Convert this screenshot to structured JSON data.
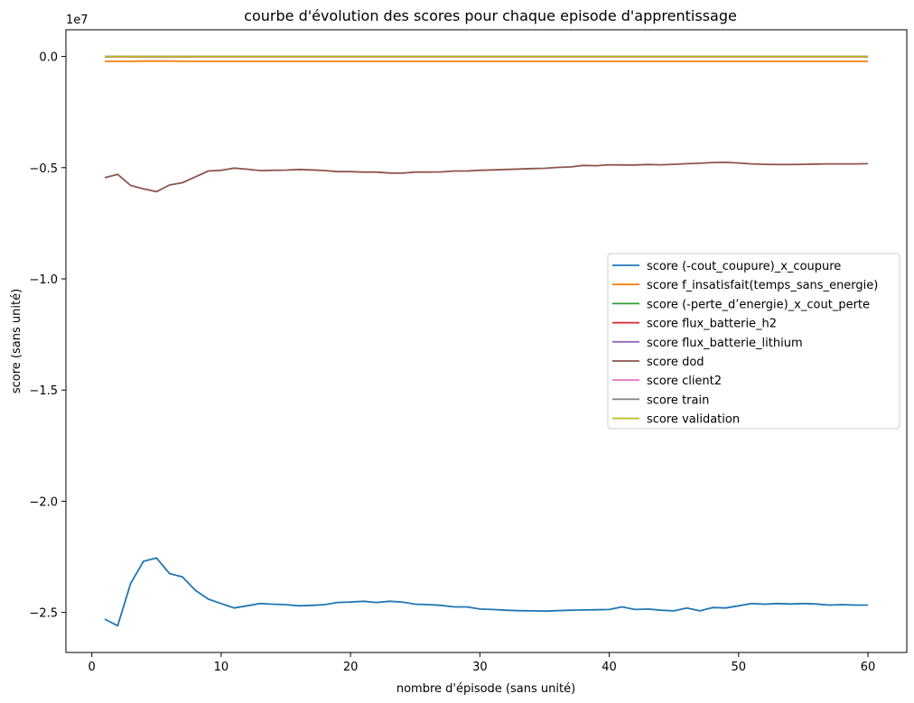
{
  "chart_data": {
    "type": "line",
    "title": "courbe d'évolution des scores pour chaque episode d'apprentissage",
    "xlabel": "nombre d'épisode (sans unité)",
    "ylabel": "score (sans unité)",
    "y_multiplier": "1e7",
    "xlim": [
      -2,
      63
    ],
    "ylim": [
      -2.68,
      0.12
    ],
    "x_ticks": [
      0,
      10,
      20,
      30,
      40,
      50,
      60
    ],
    "x_tick_labels": [
      "0",
      "10",
      "20",
      "30",
      "40",
      "50",
      "60"
    ],
    "y_ticks": [
      0.0,
      -0.5,
      -1.0,
      -1.5,
      -2.0,
      -2.5
    ],
    "y_tick_labels": [
      "0.0",
      "−0.5",
      "−1.0",
      "−1.5",
      "−2.0",
      "−2.5"
    ],
    "grid": false,
    "legend_position": "center-right",
    "x": [
      1,
      2,
      3,
      4,
      5,
      6,
      7,
      8,
      9,
      10,
      11,
      12,
      13,
      14,
      15,
      16,
      17,
      18,
      19,
      20,
      21,
      22,
      23,
      24,
      25,
      26,
      27,
      28,
      29,
      30,
      31,
      32,
      33,
      34,
      35,
      36,
      37,
      38,
      39,
      40,
      41,
      42,
      43,
      44,
      45,
      46,
      47,
      48,
      49,
      50,
      51,
      52,
      53,
      54,
      55,
      56,
      57,
      58,
      59,
      60
    ],
    "series": [
      {
        "name": "score (-cout_coupure)_x_coupure",
        "color": "#1f77b4",
        "values": [
          -2.53,
          -2.56,
          -2.37,
          -2.27,
          -2.255,
          -2.325,
          -2.34,
          -2.4,
          -2.44,
          -2.46,
          -2.48,
          -2.47,
          -2.46,
          -2.463,
          -2.465,
          -2.47,
          -2.468,
          -2.465,
          -2.455,
          -2.453,
          -2.45,
          -2.455,
          -2.45,
          -2.453,
          -2.463,
          -2.465,
          -2.468,
          -2.475,
          -2.475,
          -2.485,
          -2.487,
          -2.49,
          -2.492,
          -2.493,
          -2.494,
          -2.492,
          -2.49,
          -2.489,
          -2.488,
          -2.487,
          -2.475,
          -2.487,
          -2.485,
          -2.49,
          -2.493,
          -2.48,
          -2.493,
          -2.478,
          -2.48,
          -2.47,
          -2.46,
          -2.463,
          -2.46,
          -2.462,
          -2.46,
          -2.462,
          -2.467,
          -2.465,
          -2.467,
          -2.467
        ]
      },
      {
        "name": "score f_insatisfait(temps_sans_energie)",
        "color": "#ff7f0e",
        "values": [
          -0.022,
          -0.022,
          -0.022,
          -0.021,
          -0.021,
          -0.021,
          -0.022,
          -0.022,
          -0.022,
          -0.022,
          -0.022,
          -0.022,
          -0.022,
          -0.022,
          -0.022,
          -0.022,
          -0.022,
          -0.022,
          -0.022,
          -0.022,
          -0.022,
          -0.022,
          -0.022,
          -0.022,
          -0.022,
          -0.022,
          -0.022,
          -0.022,
          -0.022,
          -0.022,
          -0.022,
          -0.022,
          -0.022,
          -0.022,
          -0.022,
          -0.022,
          -0.022,
          -0.022,
          -0.022,
          -0.022,
          -0.022,
          -0.022,
          -0.022,
          -0.022,
          -0.022,
          -0.022,
          -0.022,
          -0.022,
          -0.022,
          -0.022,
          -0.022,
          -0.022,
          -0.022,
          -0.022,
          -0.022,
          -0.022,
          -0.022,
          -0.022,
          -0.022,
          -0.022
        ]
      },
      {
        "name": "score (-perte_d’energie)_x_cout_perte",
        "color": "#2ca02c",
        "values": [
          -0.001,
          -0.001,
          -0.001,
          -0.001,
          -0.001,
          -0.001,
          -0.001,
          -0.001,
          -0.001,
          -0.001,
          -0.001,
          -0.001,
          -0.001,
          -0.001,
          -0.001,
          -0.001,
          -0.001,
          -0.001,
          -0.001,
          -0.001,
          -0.001,
          -0.001,
          -0.001,
          -0.001,
          -0.001,
          -0.001,
          -0.001,
          -0.001,
          -0.001,
          -0.001,
          -0.001,
          -0.001,
          -0.001,
          -0.001,
          -0.001,
          -0.001,
          -0.001,
          -0.001,
          -0.001,
          -0.001,
          -0.001,
          -0.001,
          -0.001,
          -0.001,
          -0.001,
          -0.001,
          -0.001,
          -0.001,
          -0.001,
          -0.001,
          -0.001,
          -0.001,
          -0.001,
          -0.001,
          -0.001,
          -0.001,
          -0.001,
          -0.001,
          -0.001,
          -0.001
        ]
      },
      {
        "name": "score flux_batterie_h2",
        "color": "#d62728",
        "values": [
          -0.001,
          -0.001,
          -0.001,
          -0.001,
          -0.001,
          -0.001,
          -0.001,
          -0.001,
          -0.001,
          -0.001,
          -0.001,
          -0.001,
          -0.001,
          -0.001,
          -0.001,
          -0.001,
          -0.001,
          -0.001,
          -0.001,
          -0.001,
          -0.001,
          -0.001,
          -0.001,
          -0.001,
          -0.001,
          -0.001,
          -0.001,
          -0.001,
          -0.001,
          -0.001,
          -0.001,
          -0.001,
          -0.001,
          -0.001,
          -0.001,
          -0.001,
          -0.001,
          -0.001,
          -0.001,
          -0.001,
          -0.001,
          -0.001,
          -0.001,
          -0.001,
          -0.001,
          -0.001,
          -0.001,
          -0.001,
          -0.001,
          -0.001,
          -0.001,
          -0.001,
          -0.001,
          -0.001,
          -0.001,
          -0.001,
          -0.001,
          -0.001,
          -0.001,
          -0.001
        ]
      },
      {
        "name": "score flux_batterie_lithium",
        "color": "#9467bd",
        "values": [
          -0.001,
          -0.001,
          -0.001,
          -0.001,
          -0.001,
          -0.001,
          -0.001,
          -0.001,
          -0.001,
          -0.001,
          -0.001,
          -0.001,
          -0.001,
          -0.001,
          -0.001,
          -0.001,
          -0.001,
          -0.001,
          -0.001,
          -0.001,
          -0.001,
          -0.001,
          -0.001,
          -0.001,
          -0.001,
          -0.001,
          -0.001,
          -0.001,
          -0.001,
          -0.001,
          -0.001,
          -0.001,
          -0.001,
          -0.001,
          -0.001,
          -0.001,
          -0.001,
          -0.001,
          -0.001,
          -0.001,
          -0.001,
          -0.001,
          -0.001,
          -0.001,
          -0.001,
          -0.001,
          -0.001,
          -0.001,
          -0.001,
          -0.001,
          -0.001,
          -0.001,
          -0.001,
          -0.001,
          -0.001,
          -0.001,
          -0.001,
          -0.001,
          -0.001,
          -0.001
        ]
      },
      {
        "name": "score dod",
        "color": "#8c564b",
        "values": [
          -0.545,
          -0.53,
          -0.58,
          -0.595,
          -0.608,
          -0.578,
          -0.568,
          -0.542,
          -0.515,
          -0.512,
          -0.502,
          -0.507,
          -0.513,
          -0.512,
          -0.511,
          -0.508,
          -0.51,
          -0.513,
          -0.518,
          -0.518,
          -0.52,
          -0.52,
          -0.524,
          -0.525,
          -0.52,
          -0.52,
          -0.519,
          -0.515,
          -0.515,
          -0.512,
          -0.51,
          -0.508,
          -0.506,
          -0.504,
          -0.503,
          -0.499,
          -0.497,
          -0.49,
          -0.491,
          -0.487,
          -0.488,
          -0.488,
          -0.486,
          -0.487,
          -0.485,
          -0.482,
          -0.48,
          -0.477,
          -0.476,
          -0.479,
          -0.483,
          -0.485,
          -0.486,
          -0.486,
          -0.485,
          -0.484,
          -0.483,
          -0.483,
          -0.483,
          -0.482
        ]
      },
      {
        "name": "score client2",
        "color": "#e377c2",
        "values": [
          0.0,
          0.0,
          0.0,
          0.0,
          0.0,
          0.0,
          0.0,
          0.0,
          0.0,
          0.0,
          0.0,
          0.0,
          0.0,
          0.0,
          0.0,
          0.0,
          0.0,
          0.0,
          0.0,
          0.0,
          0.0,
          0.0,
          0.0,
          0.0,
          0.0,
          0.0,
          0.0,
          0.0,
          0.0,
          0.0,
          0.0,
          0.0,
          0.0,
          0.0,
          0.0,
          0.0,
          0.0,
          0.0,
          0.0,
          0.0,
          0.0,
          0.0,
          0.0,
          0.0,
          0.0,
          0.0,
          0.0,
          0.0,
          0.0,
          0.0,
          0.0,
          0.0,
          0.0,
          0.0,
          0.0,
          0.0,
          0.0,
          0.0,
          0.0,
          0.0
        ]
      },
      {
        "name": "score train",
        "color": "#7f7f7f",
        "values": [
          0.0,
          0.0,
          0.0,
          0.0,
          0.0,
          0.0,
          0.0,
          0.0,
          0.0,
          0.0,
          0.0,
          0.0,
          0.0,
          0.0,
          0.0,
          0.0,
          0.0,
          0.0,
          0.0,
          0.0,
          0.0,
          0.0,
          0.0,
          0.0,
          0.0,
          0.0,
          0.0,
          0.0,
          0.0,
          0.0,
          0.0,
          0.0,
          0.0,
          0.0,
          0.0,
          0.0,
          0.0,
          0.0,
          0.0,
          0.0,
          0.0,
          0.0,
          0.0,
          0.0,
          0.0,
          0.0,
          0.0,
          0.0,
          0.0,
          0.0,
          0.0,
          0.0,
          0.0,
          0.0,
          0.0,
          0.0,
          0.0,
          0.0,
          0.0,
          0.0
        ]
      },
      {
        "name": "score validation",
        "color": "#bcbd22",
        "values": [
          0.0,
          0.0,
          0.0,
          0.0,
          0.0,
          0.0,
          0.0,
          0.0,
          0.0,
          0.0,
          0.0,
          0.0,
          0.0,
          0.0,
          0.0,
          0.0,
          0.0,
          0.0,
          0.0,
          0.0,
          0.0,
          0.0,
          0.0,
          0.0,
          0.0,
          0.0,
          0.0,
          0.0,
          0.0,
          0.0,
          0.0,
          0.0,
          0.0,
          0.0,
          0.0,
          0.0,
          0.0,
          0.0,
          0.0,
          0.0,
          0.0,
          0.0,
          0.0,
          0.0,
          0.0,
          0.0,
          0.0,
          0.0,
          0.0,
          0.0,
          0.0,
          0.0,
          0.0,
          0.0,
          0.0,
          0.0,
          0.0,
          0.0,
          0.0,
          0.0
        ]
      }
    ]
  }
}
